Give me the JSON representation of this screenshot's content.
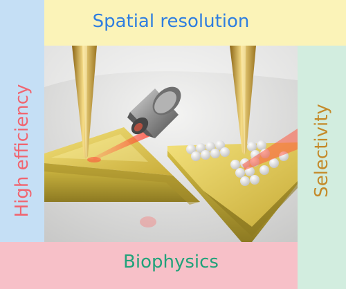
{
  "labels": {
    "top": "Spatial resolution",
    "left": "High efficiency",
    "right": "Selectivity",
    "bottom": "Biophysics"
  },
  "colors": {
    "top_band": "#fbf3b8",
    "left_band": "#c5dff5",
    "right_band": "#d2eddf",
    "bottom_band": "#f7c0c8",
    "top_text": "#2f7ee0",
    "left_text": "#f06570",
    "right_text": "#c48a2a",
    "bottom_text": "#21a27a",
    "gold": "#d9b84a",
    "laser": "#ff6a4a"
  }
}
